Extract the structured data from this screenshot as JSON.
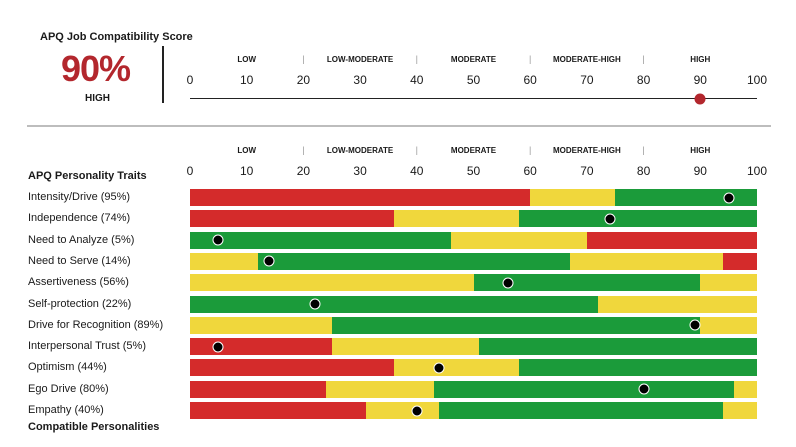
{
  "header": {
    "title": "APQ Job Compatibility Score",
    "score": "90%",
    "level": "HIGH",
    "score_value": 90
  },
  "scale": {
    "bands": [
      "LOW",
      "LOW-MODERATE",
      "MODERATE",
      "MODERATE-HIGH",
      "HIGH"
    ],
    "ticks": [
      "0",
      "10",
      "20",
      "30",
      "40",
      "50",
      "60",
      "70",
      "80",
      "90",
      "100"
    ],
    "separator": "|"
  },
  "traits_section": {
    "heading": "APQ Personality Traits",
    "next_section_partial": "Compatible Personalities"
  },
  "colors": {
    "red": "#d42b2b",
    "yellow": "#f0d73c",
    "green": "#1b9b3a",
    "accent": "#b3272d"
  },
  "chart_data": {
    "type": "bar",
    "xlim": [
      0,
      100
    ],
    "categories": [
      "Intensity/Drive (95%)",
      "Independence (74%)",
      "Need to Analyze (5%)",
      "Need to Serve (14%)",
      "Assertiveness (56%)",
      "Self-protection (22%)",
      "Drive for Recognition (89%)",
      "Interpersonal Trust (5%)",
      "Optimism (44%)",
      "Ego Drive (80%)",
      "Empathy (40%)"
    ],
    "scores": [
      95,
      74,
      5,
      14,
      56,
      22,
      89,
      5,
      44,
      80,
      40
    ],
    "zones": [
      [
        {
          "to": 60,
          "color": "red"
        },
        {
          "to": 75,
          "color": "yellow"
        },
        {
          "to": 100,
          "color": "green"
        }
      ],
      [
        {
          "to": 36,
          "color": "red"
        },
        {
          "to": 58,
          "color": "yellow"
        },
        {
          "to": 100,
          "color": "green"
        }
      ],
      [
        {
          "to": 46,
          "color": "green"
        },
        {
          "to": 70,
          "color": "yellow"
        },
        {
          "to": 100,
          "color": "red"
        }
      ],
      [
        {
          "to": 12,
          "color": "yellow"
        },
        {
          "to": 67,
          "color": "green"
        },
        {
          "to": 94,
          "color": "yellow"
        },
        {
          "to": 100,
          "color": "red"
        }
      ],
      [
        {
          "to": 50,
          "color": "yellow"
        },
        {
          "to": 90,
          "color": "green"
        },
        {
          "to": 100,
          "color": "yellow"
        }
      ],
      [
        {
          "to": 72,
          "color": "green"
        },
        {
          "to": 100,
          "color": "yellow"
        }
      ],
      [
        {
          "to": 25,
          "color": "yellow"
        },
        {
          "to": 90,
          "color": "green"
        },
        {
          "to": 100,
          "color": "yellow"
        }
      ],
      [
        {
          "to": 25,
          "color": "red"
        },
        {
          "to": 51,
          "color": "yellow"
        },
        {
          "to": 100,
          "color": "green"
        }
      ],
      [
        {
          "to": 36,
          "color": "red"
        },
        {
          "to": 58,
          "color": "yellow"
        },
        {
          "to": 100,
          "color": "green"
        }
      ],
      [
        {
          "to": 24,
          "color": "red"
        },
        {
          "to": 43,
          "color": "yellow"
        },
        {
          "to": 96,
          "color": "green"
        },
        {
          "to": 100,
          "color": "yellow"
        }
      ],
      [
        {
          "to": 31,
          "color": "red"
        },
        {
          "to": 44,
          "color": "yellow"
        },
        {
          "to": 94,
          "color": "green"
        },
        {
          "to": 100,
          "color": "yellow"
        }
      ]
    ]
  }
}
